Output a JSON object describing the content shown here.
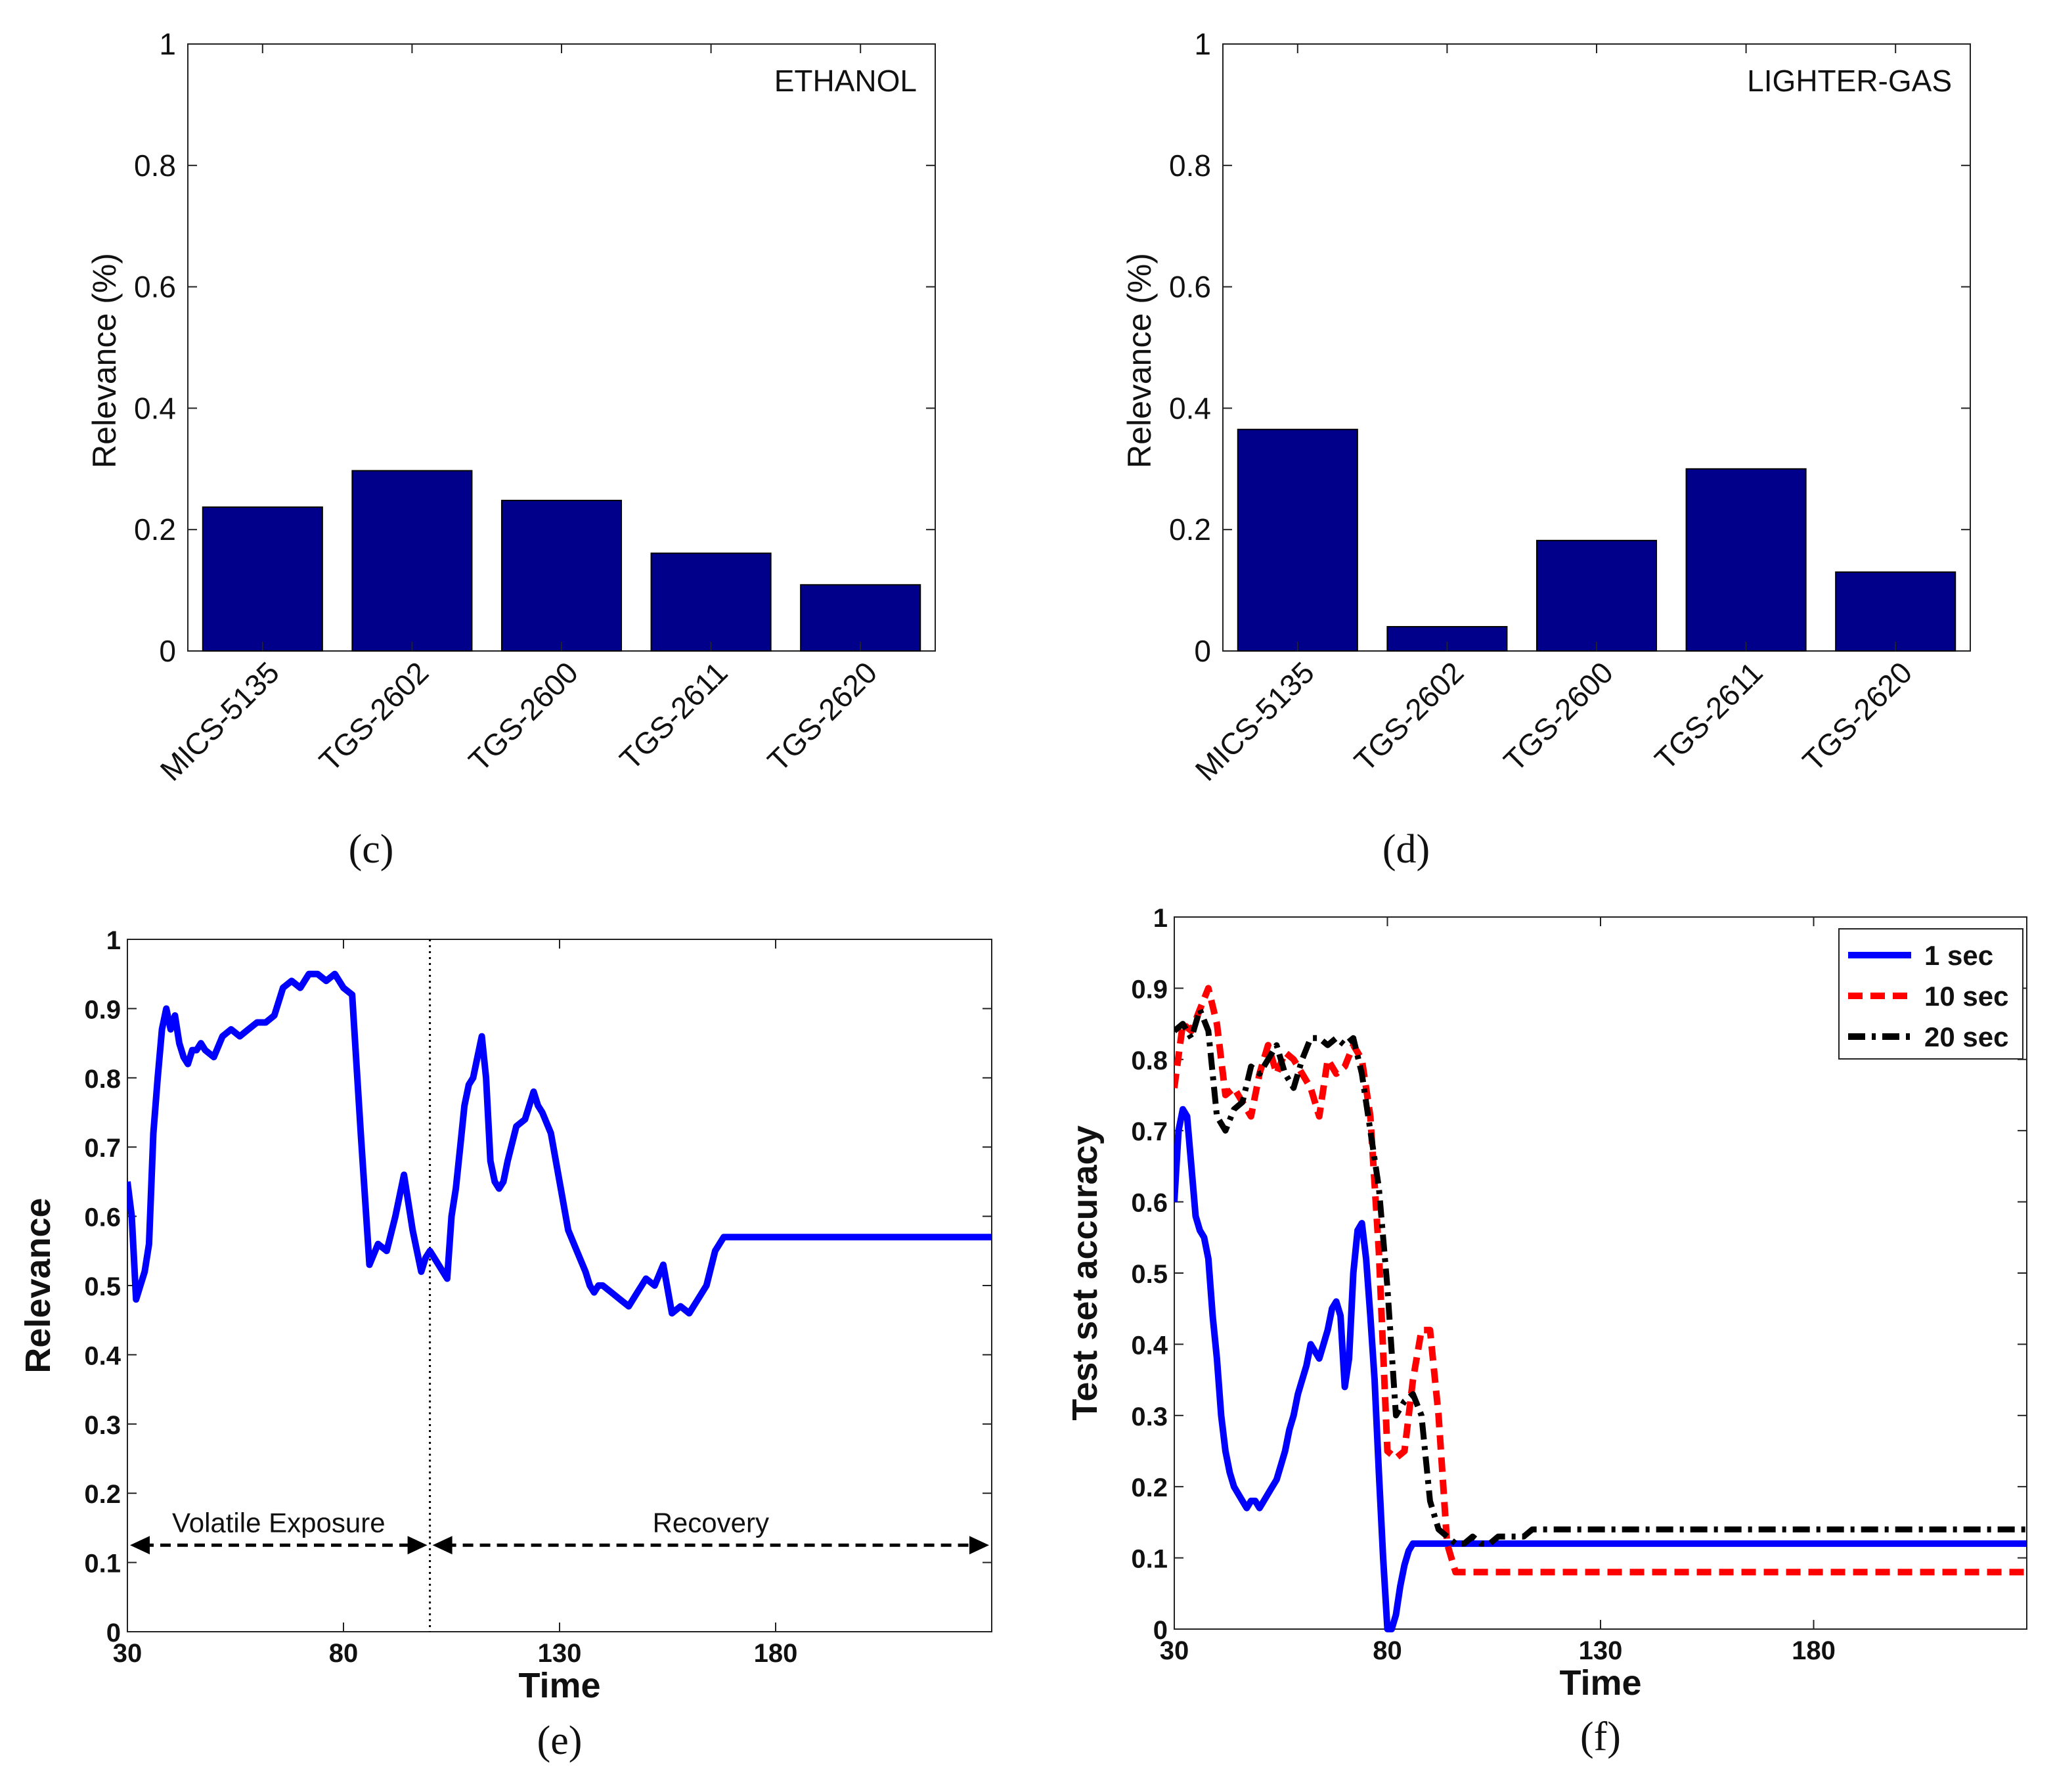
{
  "chart_data": [
    {
      "type": "bar",
      "panel": "(c)",
      "title": "ETHANOL",
      "ylabel": "Relevance (%)",
      "xlabel": "",
      "categories": [
        "MICS-5135",
        "TGS-2602",
        "TGS-2600",
        "TGS-2611",
        "TGS-2620"
      ],
      "values": [
        0.237,
        0.297,
        0.248,
        0.161,
        0.109
      ],
      "ylim": [
        0,
        1
      ],
      "yticks": [
        "0",
        "0.2",
        "0.4",
        "0.6",
        "0.8",
        "1"
      ],
      "bar_color": "#00008B"
    },
    {
      "type": "bar",
      "panel": "(d)",
      "title": "LIGHTER-GAS",
      "ylabel": "Relevance (%)",
      "xlabel": "",
      "categories": [
        "MICS-5135",
        "TGS-2602",
        "TGS-2600",
        "TGS-2611",
        "TGS-2620"
      ],
      "values": [
        0.365,
        0.04,
        0.182,
        0.3,
        0.13
      ],
      "ylim": [
        0,
        1
      ],
      "yticks": [
        "0",
        "0.2",
        "0.4",
        "0.6",
        "0.8",
        "1"
      ],
      "bar_color": "#00008B"
    },
    {
      "type": "line",
      "panel": "(e)",
      "xlabel": "Time",
      "ylabel": "Relevance",
      "xlim": [
        30,
        230
      ],
      "ylim": [
        0,
        1
      ],
      "xticks": [
        "30",
        "80",
        "130",
        "180"
      ],
      "yticks": [
        "0",
        "0.1",
        "0.2",
        "0.3",
        "0.4",
        "0.5",
        "0.6",
        "0.7",
        "0.8",
        "0.9",
        "1"
      ],
      "divider_x": 100,
      "annotations": [
        {
          "text": "Volatile Exposure",
          "x_from": 30,
          "x_to": 100,
          "y": 0.125
        },
        {
          "text": "Recovery",
          "x_from": 100,
          "x_to": 230,
          "y": 0.125
        }
      ],
      "series": [
        {
          "color": "#0000FF",
          "x": [
            30,
            31,
            32,
            33,
            34,
            35,
            36,
            37,
            38,
            39,
            40,
            41,
            42,
            43,
            44,
            45,
            46,
            47,
            48,
            50,
            52,
            54,
            56,
            58,
            60,
            62,
            64,
            66,
            68,
            70,
            72,
            74,
            76,
            78,
            80,
            82,
            84,
            86,
            88,
            90,
            92,
            94,
            96,
            98,
            99,
            100,
            101,
            102,
            103,
            104,
            105,
            106,
            107,
            108,
            109,
            110,
            111,
            112,
            113,
            114,
            115,
            116,
            117,
            118,
            120,
            122,
            124,
            125,
            126,
            128,
            130,
            132,
            134,
            136,
            137,
            138,
            139,
            140,
            142,
            144,
            146,
            148,
            150,
            152,
            154,
            156,
            158,
            160,
            162,
            164,
            166,
            168,
            170,
            172,
            174,
            176,
            178,
            180,
            182,
            184,
            186,
            188,
            190,
            192,
            194,
            196,
            198,
            200,
            202,
            204,
            206,
            208,
            210,
            212,
            214,
            216,
            218,
            220,
            222,
            224,
            226,
            228,
            230
          ],
          "y": [
            0.65,
            0.6,
            0.48,
            0.5,
            0.52,
            0.56,
            0.72,
            0.8,
            0.87,
            0.9,
            0.87,
            0.89,
            0.85,
            0.83,
            0.82,
            0.84,
            0.84,
            0.85,
            0.84,
            0.83,
            0.86,
            0.87,
            0.86,
            0.87,
            0.88,
            0.88,
            0.89,
            0.93,
            0.94,
            0.93,
            0.95,
            0.95,
            0.94,
            0.95,
            0.93,
            0.92,
            0.72,
            0.53,
            0.56,
            0.55,
            0.6,
            0.66,
            0.58,
            0.52,
            0.54,
            0.55,
            0.54,
            0.53,
            0.52,
            0.51,
            0.6,
            0.64,
            0.7,
            0.76,
            0.79,
            0.8,
            0.83,
            0.86,
            0.8,
            0.68,
            0.65,
            0.64,
            0.65,
            0.68,
            0.73,
            0.74,
            0.78,
            0.76,
            0.75,
            0.72,
            0.65,
            0.58,
            0.55,
            0.52,
            0.5,
            0.49,
            0.5,
            0.5,
            0.49,
            0.48,
            0.47,
            0.49,
            0.51,
            0.5,
            0.53,
            0.46,
            0.47,
            0.46,
            0.48,
            0.5,
            0.55,
            0.57,
            0.57,
            0.57,
            0.57,
            0.57,
            0.57,
            0.57,
            0.57,
            0.57,
            0.57,
            0.57,
            0.57,
            0.57,
            0.57,
            0.57,
            0.57,
            0.57,
            0.57,
            0.57,
            0.57,
            0.57,
            0.57,
            0.57,
            0.57,
            0.57,
            0.57,
            0.57,
            0.57,
            0.57,
            0.57,
            0.57,
            0.57
          ]
        }
      ]
    },
    {
      "type": "line",
      "panel": "(f)",
      "xlabel": "Time",
      "ylabel": "Test set accuracy",
      "xlim": [
        30,
        230
      ],
      "ylim": [
        0,
        1
      ],
      "xticks": [
        "30",
        "80",
        "130",
        "180"
      ],
      "yticks": [
        "0",
        "0.1",
        "0.2",
        "0.3",
        "0.4",
        "0.5",
        "0.6",
        "0.7",
        "0.8",
        "0.9",
        "1"
      ],
      "legend_position": "top-right",
      "series": [
        {
          "name": "1 sec",
          "color": "#0000FF",
          "style": "solid",
          "x": [
            30,
            31,
            32,
            33,
            34,
            35,
            36,
            37,
            38,
            39,
            40,
            41,
            42,
            43,
            44,
            45,
            46,
            47,
            48,
            49,
            50,
            51,
            52,
            53,
            54,
            55,
            56,
            57,
            58,
            59,
            60,
            61,
            62,
            63,
            64,
            65,
            66,
            67,
            68,
            69,
            70,
            71,
            72,
            73,
            74,
            75,
            76,
            77,
            78,
            79,
            80,
            81,
            82,
            83,
            84,
            85,
            86,
            87,
            88,
            89,
            90,
            91,
            92,
            93,
            94,
            95,
            96,
            97,
            98,
            99,
            100,
            102,
            104,
            106,
            110,
            120,
            130,
            140,
            150,
            160,
            170,
            180,
            190,
            200,
            210,
            220,
            230
          ],
          "y": [
            0.6,
            0.7,
            0.73,
            0.72,
            0.65,
            0.58,
            0.56,
            0.55,
            0.52,
            0.44,
            0.38,
            0.3,
            0.25,
            0.22,
            0.2,
            0.19,
            0.18,
            0.17,
            0.18,
            0.18,
            0.17,
            0.18,
            0.19,
            0.2,
            0.21,
            0.23,
            0.25,
            0.28,
            0.3,
            0.33,
            0.35,
            0.37,
            0.4,
            0.39,
            0.38,
            0.4,
            0.42,
            0.45,
            0.46,
            0.44,
            0.34,
            0.38,
            0.5,
            0.56,
            0.57,
            0.52,
            0.44,
            0.35,
            0.22,
            0.1,
            0.0,
            0.0,
            0.02,
            0.06,
            0.09,
            0.11,
            0.12,
            0.12,
            0.12,
            0.12,
            0.12,
            0.12,
            0.12,
            0.12,
            0.12,
            0.12,
            0.12,
            0.12,
            0.12,
            0.12,
            0.12,
            0.12,
            0.12,
            0.12,
            0.12,
            0.12,
            0.12,
            0.12,
            0.12,
            0.12,
            0.12,
            0.12,
            0.12,
            0.12,
            0.12,
            0.12,
            0.12
          ]
        },
        {
          "name": "10 sec",
          "color": "#FF0000",
          "style": "dashed",
          "x": [
            30,
            32,
            34,
            36,
            38,
            40,
            42,
            44,
            46,
            48,
            50,
            52,
            54,
            56,
            58,
            60,
            62,
            64,
            66,
            68,
            70,
            72,
            74,
            76,
            78,
            80,
            82,
            84,
            86,
            88,
            90,
            92,
            94,
            96,
            98,
            100,
            102,
            104,
            106,
            108,
            110,
            111,
            112,
            113,
            120,
            130,
            140,
            150,
            160,
            170,
            180,
            190,
            200,
            210,
            220,
            230
          ],
          "y": [
            0.76,
            0.85,
            0.84,
            0.87,
            0.9,
            0.85,
            0.75,
            0.76,
            0.74,
            0.72,
            0.78,
            0.82,
            0.78,
            0.81,
            0.8,
            0.78,
            0.76,
            0.72,
            0.8,
            0.78,
            0.79,
            0.82,
            0.8,
            0.72,
            0.53,
            0.25,
            0.24,
            0.25,
            0.35,
            0.42,
            0.42,
            0.3,
            0.12,
            0.08,
            0.08,
            0.08,
            0.08,
            0.08,
            0.08,
            0.08,
            0.08,
            0.08,
            0.08,
            0.08,
            0.08,
            0.08,
            0.08,
            0.08,
            0.08,
            0.08,
            0.08,
            0.08,
            0.08,
            0.08,
            0.08,
            0.08
          ],
          "y_note": "values sampled at x"
        },
        {
          "name": "20 sec",
          "color": "#000000",
          "style": "dashdot",
          "x": [
            30,
            32,
            34,
            36,
            38,
            40,
            42,
            44,
            46,
            48,
            50,
            52,
            54,
            56,
            58,
            60,
            62,
            64,
            66,
            68,
            70,
            72,
            74,
            76,
            78,
            80,
            82,
            84,
            86,
            88,
            90,
            92,
            94,
            96,
            98,
            100,
            102,
            104,
            106,
            108,
            110,
            112,
            114,
            116,
            118,
            120,
            125,
            130,
            135,
            140,
            150,
            160,
            170,
            180,
            190,
            200,
            210,
            220,
            230
          ],
          "y": [
            0.84,
            0.85,
            0.83,
            0.87,
            0.84,
            0.72,
            0.7,
            0.73,
            0.74,
            0.79,
            0.78,
            0.8,
            0.82,
            0.78,
            0.76,
            0.8,
            0.83,
            0.83,
            0.82,
            0.83,
            0.82,
            0.83,
            0.78,
            0.7,
            0.62,
            0.48,
            0.3,
            0.32,
            0.33,
            0.3,
            0.18,
            0.14,
            0.13,
            0.12,
            0.12,
            0.13,
            0.12,
            0.12,
            0.13,
            0.13,
            0.13,
            0.13,
            0.14,
            0.14,
            0.14,
            0.14,
            0.14,
            0.14,
            0.14,
            0.14,
            0.14,
            0.14,
            0.14,
            0.14,
            0.14,
            0.14,
            0.14,
            0.14,
            0.14
          ]
        }
      ]
    }
  ]
}
